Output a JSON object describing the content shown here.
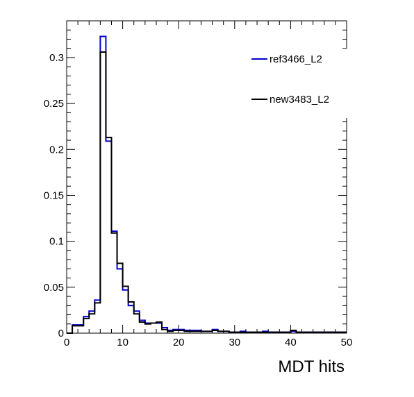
{
  "chart_data": {
    "type": "histogram",
    "title": "",
    "xlabel": "MDT hits",
    "ylabel": "",
    "xlim": [
      0,
      50
    ],
    "ylim": [
      0,
      0.34
    ],
    "bin_width": 1,
    "x_ticks": [
      0,
      10,
      20,
      30,
      40,
      50
    ],
    "y_ticks": [
      0,
      0.05,
      0.1,
      0.15,
      0.2,
      0.25,
      0.3
    ],
    "y_tick_labels": [
      "0",
      "0.05",
      "0.1",
      "0.15",
      "0.2",
      "0.25",
      "0.3"
    ],
    "legend_position": "top-right",
    "series": [
      {
        "name": "ref3466_L2",
        "color": "#0000cc",
        "bin_edges_start": 0,
        "values": [
          0,
          0.009,
          0.009,
          0.018,
          0.024,
          0.036,
          0.323,
          0.209,
          0.111,
          0.07,
          0.047,
          0.03,
          0.024,
          0.014,
          0.011,
          0.011,
          0.011,
          0.006,
          0.003,
          0.004,
          0.004,
          0.003,
          0.003,
          0.003,
          0.002,
          0.002,
          0.004,
          0.002,
          0.002,
          0.001,
          0.001,
          0.002,
          0.001,
          0.001,
          0.001,
          0.002,
          0.001,
          0.001,
          0.001,
          0.001,
          0.002,
          0.001,
          0.001,
          0.001,
          0.001,
          0.001,
          0.001,
          0.001,
          0.001,
          0.001
        ]
      },
      {
        "name": "new3483_L2",
        "color": "#000000",
        "bin_edges_start": 0,
        "values": [
          0,
          0.008,
          0.008,
          0.016,
          0.021,
          0.033,
          0.306,
          0.213,
          0.109,
          0.076,
          0.051,
          0.034,
          0.021,
          0.012,
          0.01,
          0.011,
          0.012,
          0.004,
          0.002,
          0.003,
          0.003,
          0.002,
          0.002,
          0.002,
          0.002,
          0.002,
          0.003,
          0.002,
          0.002,
          0.001,
          0.001,
          0.001,
          0.001,
          0.001,
          0.001,
          0.001,
          0.001,
          0.001,
          0.001,
          0.001,
          0.003,
          0.001,
          0.001,
          0.001,
          0.001,
          0.001,
          0.001,
          0.001,
          0.001,
          0.001
        ]
      }
    ]
  }
}
